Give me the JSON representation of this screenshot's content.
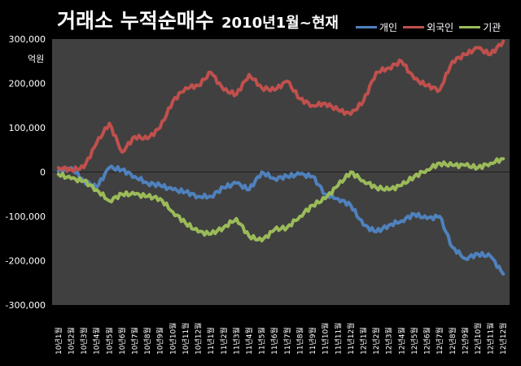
{
  "title_main": "거래소 누적순매수",
  "title_sub": "2010년1월~현재",
  "unit_label": "억원",
  "colors": {
    "background": "#000000",
    "plot_area": "#404040",
    "individual": "#4f81bd",
    "foreign": "#c0504d",
    "institution": "#9bbb59"
  },
  "chart_data": {
    "type": "line",
    "title": "거래소 누적순매수 2010년1월~현재",
    "ylabel": "억원",
    "ylim": [
      -300000,
      300000
    ],
    "yticks": [
      "300,000",
      "200,000",
      "100,000",
      "0",
      "-100,000",
      "-200,000",
      "-300,000"
    ],
    "x_labels": [
      "10년1월",
      "10년2월",
      "10년3월",
      "10년4월",
      "10년5월",
      "10년6월",
      "10년7월",
      "10년8월",
      "10년9월",
      "10년10월",
      "10년11월",
      "10년12월",
      "11년1월",
      "11년2월",
      "11년3월",
      "11년4월",
      "11년5월",
      "11년6월",
      "11년7월",
      "11년8월",
      "11년9월",
      "11년10월",
      "11년11월",
      "11년12월",
      "12년1월",
      "12년2월",
      "12년3월",
      "12년4월",
      "12년5월",
      "12년6월",
      "12년7월",
      "12년8월",
      "12년9월",
      "12년10월",
      "12년11월",
      "12년12월"
    ],
    "grid": false,
    "legend_position": "top-right",
    "series": [
      {
        "name": "개인",
        "color": "#4f81bd",
        "values": [
          2000,
          10000,
          -20000,
          -35000,
          10000,
          5000,
          -10000,
          -25000,
          -30000,
          -40000,
          -45000,
          -55000,
          -55000,
          -35000,
          -25000,
          -40000,
          0,
          -15000,
          -10000,
          -5000,
          -10000,
          -50000,
          -60000,
          -75000,
          -120000,
          -135000,
          -120000,
          -110000,
          -95000,
          -105000,
          -100000,
          -170000,
          -195000,
          -185000,
          -190000,
          -230000
        ]
      },
      {
        "name": "외국인",
        "color": "#c0504d",
        "values": [
          10000,
          5000,
          10000,
          65000,
          110000,
          45000,
          80000,
          75000,
          100000,
          160000,
          190000,
          195000,
          225000,
          185000,
          175000,
          220000,
          190000,
          185000,
          205000,
          165000,
          150000,
          155000,
          140000,
          130000,
          160000,
          225000,
          235000,
          250000,
          210000,
          195000,
          185000,
          250000,
          265000,
          280000,
          265000,
          295000
        ]
      },
      {
        "name": "기관",
        "color": "#9bbb59",
        "values": [
          -5000,
          -15000,
          -20000,
          -40000,
          -65000,
          -50000,
          -50000,
          -55000,
          -60000,
          -90000,
          -115000,
          -135000,
          -140000,
          -125000,
          -105000,
          -145000,
          -155000,
          -130000,
          -125000,
          -100000,
          -75000,
          -60000,
          -30000,
          0,
          -20000,
          -35000,
          -40000,
          -30000,
          -10000,
          5000,
          20000,
          15000,
          15000,
          10000,
          20000,
          30000
        ]
      }
    ]
  }
}
